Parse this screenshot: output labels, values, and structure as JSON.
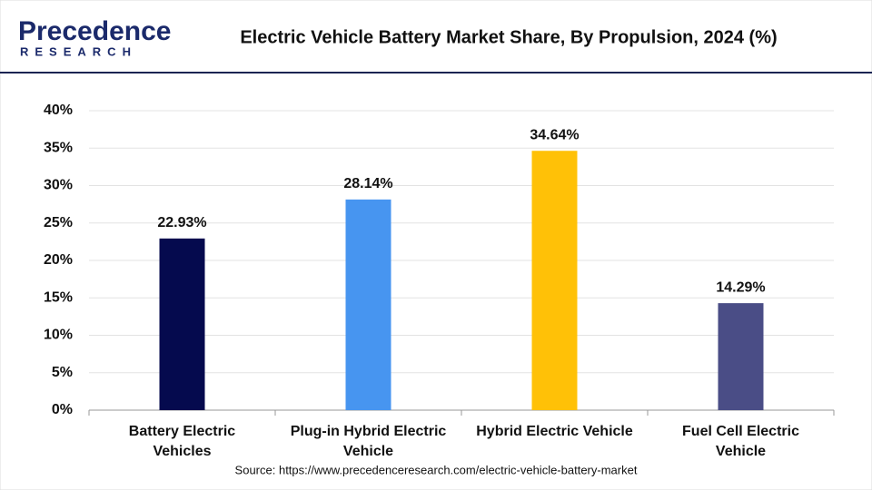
{
  "logo": {
    "name": "Precedence",
    "tagline": "RESEARCH"
  },
  "chart_data": {
    "type": "bar",
    "title": "Electric Vehicle Battery Market Share, By Propulsion, 2024 (%)",
    "categories": [
      "Battery Electric Vehicles",
      "Plug-in Hybrid Electric Vehicle",
      "Hybrid Electric Vehicle",
      "Fuel Cell Electric Vehicle"
    ],
    "values": [
      22.93,
      28.14,
      34.64,
      14.29
    ],
    "value_labels": [
      "22.93%",
      "28.14%",
      "34.64%",
      "14.29%"
    ],
    "colors": [
      "#050a4e",
      "#4795f0",
      "#ffc107",
      "#4a4d86"
    ],
    "ylim": [
      0,
      40
    ],
    "yticks": [
      {
        "value": 0,
        "label": "0%"
      },
      {
        "value": 5,
        "label": "5%"
      },
      {
        "value": 10,
        "label": "10%"
      },
      {
        "value": 15,
        "label": "15%"
      },
      {
        "value": 20,
        "label": "20%"
      },
      {
        "value": 25,
        "label": "25%"
      },
      {
        "value": 30,
        "label": "30%"
      },
      {
        "value": 35,
        "label": "35%"
      },
      {
        "value": 40,
        "label": "40%"
      }
    ],
    "grid": true,
    "source": "Source: https://www.precedenceresearch.com/electric-vehicle-battery-market"
  }
}
